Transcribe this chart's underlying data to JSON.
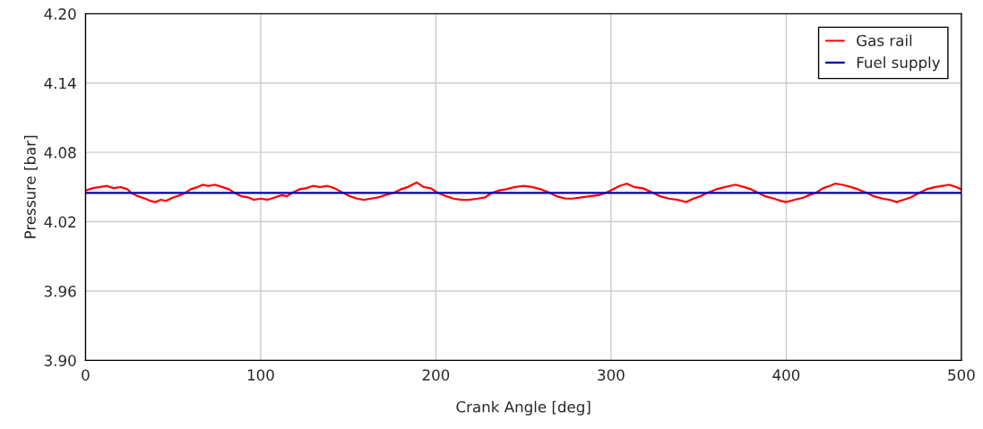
{
  "chart_data": {
    "type": "line",
    "xlabel": "Crank Angle [deg]",
    "ylabel": "Pressure [bar]",
    "xlim": [
      0,
      500
    ],
    "xticks": [
      0,
      100,
      200,
      300,
      400,
      500
    ],
    "ylim": [
      3.9,
      4.2
    ],
    "yticks": [
      {
        "value": 3.9,
        "label": "3.90"
      },
      3.96,
      4.02,
      4.08,
      4.14,
      {
        "value": 4.2,
        "label": "4.20"
      }
    ],
    "grid": true,
    "legend": "top right",
    "marker": "none",
    "line_style": "solid",
    "series": [
      {
        "name": "Gas rail",
        "color": "#ff0000",
        "x": [
          0,
          4,
          8,
          12,
          16,
          20,
          24,
          26,
          30,
          34,
          37,
          40,
          43,
          46,
          50,
          54,
          57,
          60,
          64,
          67,
          70,
          74,
          78,
          82,
          85,
          89,
          93,
          96,
          100,
          104,
          108,
          112,
          115,
          118,
          122,
          126,
          130,
          134,
          138,
          142,
          147,
          151,
          155,
          159,
          163,
          167,
          171,
          176,
          180,
          184,
          189,
          193,
          197,
          201,
          206,
          210,
          215,
          219,
          224,
          228,
          232,
          236,
          240,
          245,
          250,
          255,
          260,
          265,
          269,
          274,
          278,
          283,
          288,
          293,
          297,
          301,
          305,
          309,
          313,
          318,
          324,
          328,
          333,
          338,
          343,
          347,
          351,
          355,
          360,
          365,
          371,
          376,
          380,
          384,
          388,
          393,
          397,
          400,
          405,
          410,
          413,
          417,
          421,
          425,
          428,
          432,
          437,
          441,
          446,
          450,
          455,
          459,
          463,
          467,
          471,
          476,
          480,
          485,
          489,
          493,
          497,
          500
        ],
        "values": [
          4.047,
          4.049,
          4.05,
          4.051,
          4.049,
          4.05,
          4.048,
          4.045,
          4.042,
          4.04,
          4.038,
          4.037,
          4.039,
          4.038,
          4.041,
          4.043,
          4.045,
          4.048,
          4.05,
          4.052,
          4.051,
          4.052,
          4.05,
          4.048,
          4.045,
          4.042,
          4.041,
          4.039,
          4.04,
          4.039,
          4.041,
          4.043,
          4.042,
          4.045,
          4.048,
          4.049,
          4.051,
          4.05,
          4.051,
          4.049,
          4.045,
          4.042,
          4.04,
          4.039,
          4.04,
          4.041,
          4.043,
          4.045,
          4.048,
          4.05,
          4.054,
          4.05,
          4.049,
          4.045,
          4.042,
          4.04,
          4.039,
          4.039,
          4.04,
          4.041,
          4.045,
          4.047,
          4.048,
          4.05,
          4.051,
          4.05,
          4.048,
          4.045,
          4.042,
          4.04,
          4.04,
          4.041,
          4.042,
          4.043,
          4.045,
          4.048,
          4.051,
          4.053,
          4.05,
          4.049,
          4.045,
          4.042,
          4.04,
          4.039,
          4.037,
          4.04,
          4.042,
          4.045,
          4.048,
          4.05,
          4.052,
          4.05,
          4.048,
          4.045,
          4.042,
          4.04,
          4.038,
          4.037,
          4.039,
          4.041,
          4.043,
          4.045,
          4.049,
          4.051,
          4.053,
          4.052,
          4.05,
          4.048,
          4.045,
          4.042,
          4.04,
          4.039,
          4.037,
          4.039,
          4.041,
          4.045,
          4.048,
          4.05,
          4.051,
          4.052,
          4.05,
          4.048
        ]
      },
      {
        "name": "Fuel supply",
        "color": "#0000aa",
        "x": [
          0,
          500
        ],
        "values": [
          4.045,
          4.045
        ]
      }
    ]
  }
}
